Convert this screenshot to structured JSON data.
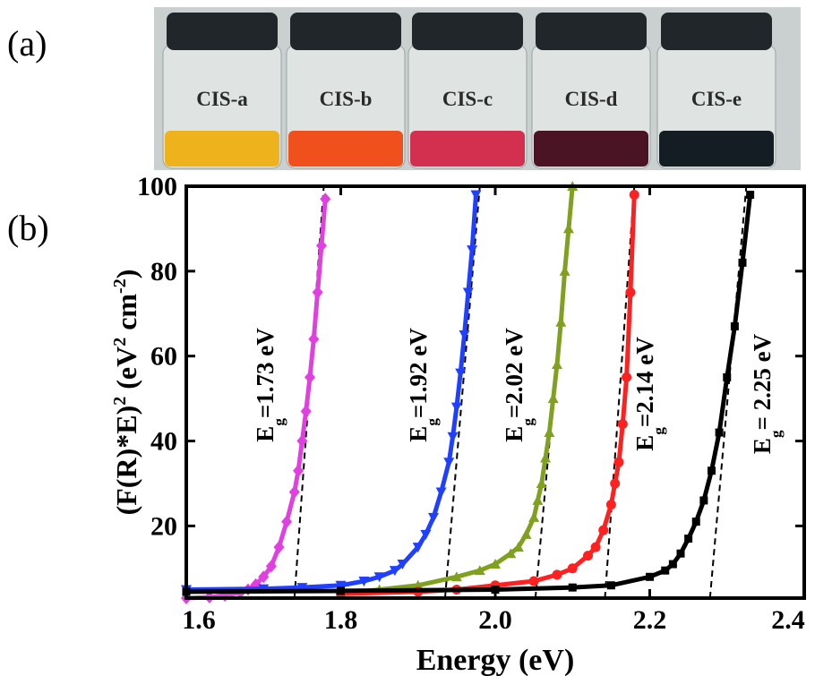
{
  "photo": {
    "panel_label": "(a)",
    "labels": [
      "CIS-a",
      "CIS-b",
      "CIS-c",
      "CIS-d",
      "CIS-e"
    ]
  },
  "chart_data": {
    "type": "scatter",
    "panel_label": "(b)",
    "x_label": "Energy (eV)",
    "y_label": [
      "(F(R)*E)",
      "2",
      " (eV",
      "2",
      " cm",
      "-2",
      ")"
    ],
    "xlim": [
      1.6,
      2.4
    ],
    "xticks": [
      1.6,
      1.8,
      {
        "value": 2.0,
        "label": "2.0"
      },
      2.2,
      2.4
    ],
    "ylim": [
      3,
      100
    ],
    "yticks": [
      20,
      40,
      60,
      80,
      100
    ],
    "series": [
      {
        "color": "#e040e0",
        "marker": "diamond",
        "x": [
          1.6,
          1.63,
          1.65,
          1.67,
          1.68,
          1.69,
          1.7,
          1.71,
          1.72,
          1.73,
          1.74,
          1.745,
          1.75,
          1.755,
          1.76,
          1.765,
          1.77,
          1.775,
          1.78
        ],
        "values": [
          3,
          3.2,
          3.6,
          4.3,
          5,
          6.2,
          8,
          10.5,
          15,
          21,
          28,
          33,
          40,
          47,
          55,
          64,
          75,
          86,
          97
        ],
        "fit_x": [
          1.74,
          1.778
        ],
        "fit_y": [
          3,
          100
        ],
        "annotation": {
          "label": "E",
          "subscript": "g",
          "suffix": "=1.73 eV"
        }
      },
      {
        "color": "#2040ff",
        "marker": "tri-down",
        "x": [
          1.6,
          1.7,
          1.75,
          1.8,
          1.83,
          1.85,
          1.87,
          1.88,
          1.9,
          1.91,
          1.92,
          1.93,
          1.94,
          1.945,
          1.95,
          1.955,
          1.96,
          1.965,
          1.97,
          1.975
        ],
        "values": [
          5,
          5.2,
          5.5,
          6,
          7,
          8,
          9.5,
          11,
          15,
          18,
          22,
          28,
          35,
          41,
          48,
          56,
          65,
          75,
          85,
          98
        ],
        "fit_x": [
          1.935,
          1.98
        ],
        "fit_y": [
          3,
          100
        ],
        "annotation": {
          "label": "E",
          "subscript": "g",
          "suffix": "=1.92 eV"
        }
      },
      {
        "color": "#80a020",
        "marker": "tri-up",
        "x": [
          1.8,
          1.85,
          1.9,
          1.95,
          1.98,
          2.0,
          2.02,
          2.03,
          2.04,
          2.05,
          2.055,
          2.06,
          2.065,
          2.07,
          2.075,
          2.08,
          2.085,
          2.09,
          2.095,
          2.1
        ],
        "values": [
          4,
          5,
          6,
          8,
          9.5,
          11,
          13.5,
          15,
          18,
          22,
          26,
          30,
          36,
          42,
          50,
          58,
          68,
          80,
          90,
          100
        ],
        "fit_x": [
          2.052,
          2.1
        ],
        "fit_y": [
          3,
          100
        ],
        "annotation": {
          "label": "E",
          "subscript": "g",
          "suffix": "=2.02 eV"
        }
      },
      {
        "color": "#ff2020",
        "marker": "circle",
        "x": [
          1.8,
          1.9,
          1.95,
          2.0,
          2.05,
          2.08,
          2.1,
          2.12,
          2.13,
          2.14,
          2.15,
          2.155,
          2.16,
          2.165,
          2.17,
          2.175,
          2.18
        ],
        "values": [
          4,
          4.5,
          5,
          6,
          7,
          8.5,
          10,
          13,
          15,
          19,
          25,
          30,
          35,
          44,
          55,
          75,
          98
        ],
        "fit_x": [
          2.142,
          2.18
        ],
        "fit_y": [
          3,
          100
        ],
        "annotation": {
          "label": "E",
          "subscript": "g",
          "suffix": "=2.14 eV"
        }
      },
      {
        "color": "#000000",
        "marker": "square",
        "x": [
          1.6,
          1.8,
          2.0,
          2.1,
          2.15,
          2.2,
          2.22,
          2.23,
          2.24,
          2.25,
          2.26,
          2.27,
          2.28,
          2.29,
          2.3,
          2.31,
          2.32,
          2.33
        ],
        "values": [
          4.5,
          4.7,
          5,
          5.5,
          6,
          8,
          9.5,
          11,
          13.5,
          17,
          21,
          26,
          33,
          42,
          55,
          67,
          82,
          98
        ],
        "fit_x": [
          2.278,
          2.325
        ],
        "fit_y": [
          3,
          100
        ],
        "annotation": {
          "label": "E",
          "subscript": "g",
          "suffix": "= 2.25 eV"
        }
      }
    ]
  }
}
